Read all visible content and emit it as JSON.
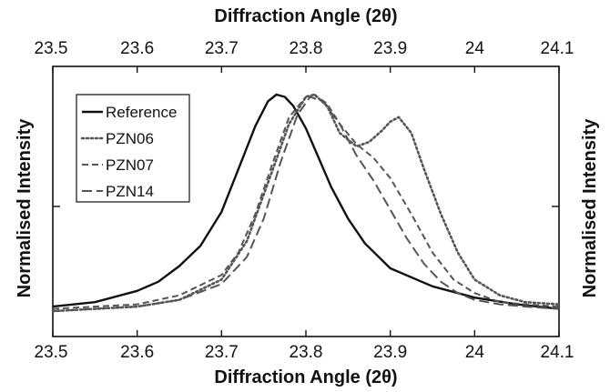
{
  "chart_data": {
    "type": "line",
    "xlabel_top": "Diffraction Angle (2θ)",
    "xlabel_bottom": "Diffraction Angle (2θ)",
    "ylabel_left": "Normalised Intensity",
    "ylabel_right": "Normalised Intensity",
    "xlim": [
      23.5,
      24.1
    ],
    "ylim": [
      0,
      1
    ],
    "y_ticks_labeled": false,
    "x_ticks": [
      23.5,
      23.6,
      23.7,
      23.8,
      23.9,
      24,
      24.1
    ],
    "x_tick_labels": [
      "23.5",
      "23.6",
      "23.7",
      "23.8",
      "23.9",
      "24",
      "24.1"
    ],
    "grid": false,
    "legend_position": "top-left",
    "series": [
      {
        "name": "Reference",
        "style": "solid",
        "color": "#111111",
        "x": [
          23.5,
          23.55,
          23.6,
          23.625,
          23.65,
          23.675,
          23.7,
          23.72,
          23.74,
          23.755,
          23.765,
          23.775,
          23.785,
          23.8,
          23.815,
          23.83,
          23.85,
          23.87,
          23.9,
          23.95,
          24.0,
          24.05,
          24.1
        ],
        "y": [
          0.06,
          0.08,
          0.13,
          0.17,
          0.24,
          0.33,
          0.48,
          0.67,
          0.86,
          0.97,
          1.0,
          0.99,
          0.95,
          0.85,
          0.72,
          0.59,
          0.45,
          0.34,
          0.23,
          0.15,
          0.1,
          0.07,
          0.05
        ]
      },
      {
        "name": "PZN06",
        "style": "dotted",
        "color": "#555555",
        "x": [
          23.5,
          23.6,
          23.65,
          23.7,
          23.73,
          23.76,
          23.78,
          23.8,
          23.81,
          23.825,
          23.84,
          23.86,
          23.875,
          23.89,
          23.9,
          23.91,
          23.925,
          23.94,
          23.96,
          23.98,
          24.0,
          24.03,
          24.06,
          24.1
        ],
        "y": [
          0.04,
          0.06,
          0.09,
          0.18,
          0.35,
          0.66,
          0.87,
          0.99,
          1.0,
          0.95,
          0.83,
          0.77,
          0.79,
          0.84,
          0.88,
          0.9,
          0.83,
          0.67,
          0.47,
          0.3,
          0.18,
          0.11,
          0.08,
          0.07
        ]
      },
      {
        "name": "PZN07",
        "style": "dashed",
        "color": "#555555",
        "x": [
          23.5,
          23.6,
          23.65,
          23.7,
          23.72,
          23.74,
          23.76,
          23.78,
          23.8,
          23.81,
          23.825,
          23.84,
          23.86,
          23.88,
          23.9,
          23.925,
          23.95,
          23.975,
          24.0,
          24.03,
          24.06,
          24.1
        ],
        "y": [
          0.05,
          0.07,
          0.11,
          0.2,
          0.3,
          0.47,
          0.69,
          0.9,
          0.99,
          1.0,
          0.96,
          0.87,
          0.78,
          0.72,
          0.63,
          0.47,
          0.3,
          0.18,
          0.12,
          0.08,
          0.07,
          0.06
        ]
      },
      {
        "name": "PZN14",
        "style": "longdash",
        "color": "#555555",
        "x": [
          23.5,
          23.6,
          23.65,
          23.7,
          23.73,
          23.75,
          23.77,
          23.79,
          23.805,
          23.82,
          23.84,
          23.86,
          23.88,
          23.9,
          23.92,
          23.94,
          23.96,
          23.98,
          24.0,
          24.03,
          24.06,
          24.1
        ],
        "y": [
          0.04,
          0.06,
          0.09,
          0.16,
          0.28,
          0.45,
          0.7,
          0.91,
          0.99,
          0.97,
          0.87,
          0.73,
          0.62,
          0.49,
          0.36,
          0.25,
          0.17,
          0.12,
          0.09,
          0.07,
          0.06,
          0.05
        ]
      }
    ]
  }
}
